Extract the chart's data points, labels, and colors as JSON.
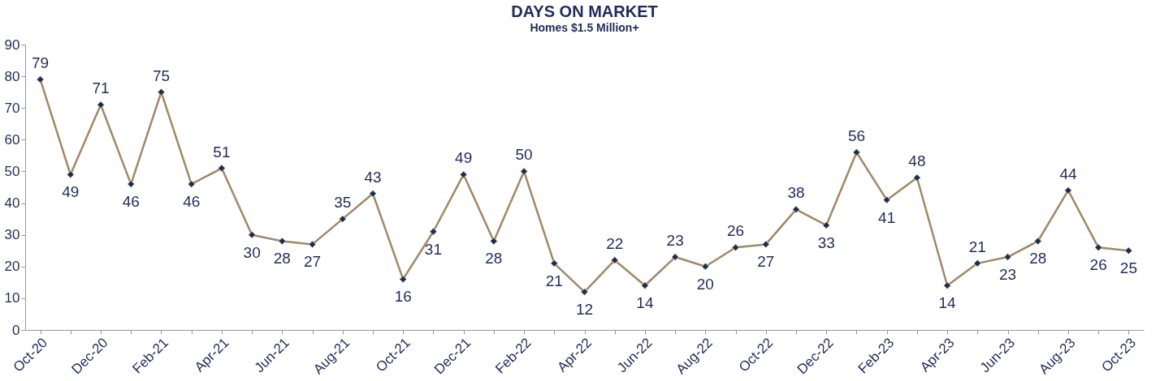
{
  "chart_data": {
    "type": "line",
    "title": "DAYS ON MARKET",
    "subtitle": "Homes $1.5 Million+",
    "categories": [
      "Oct-20",
      null,
      "Dec-20",
      null,
      "Feb-21",
      null,
      "Apr-21",
      null,
      "Jun-21",
      null,
      "Aug-21",
      null,
      "Oct-21",
      null,
      "Dec-21",
      null,
      "Feb-22",
      null,
      "Apr-22",
      null,
      "Jun-22",
      null,
      "Aug-22",
      null,
      "Oct-22",
      null,
      "Dec-22",
      null,
      "Feb-23",
      null,
      "Apr-23",
      null,
      "Jun-23",
      null,
      "Aug-23",
      null,
      "Oct-23"
    ],
    "series": [
      {
        "color": "#a08866",
        "values": [
          79,
          49,
          71,
          46,
          75,
          46,
          51,
          30,
          28,
          27,
          35,
          43,
          16,
          31,
          49,
          28,
          50,
          21,
          12,
          22,
          14,
          23,
          20,
          26,
          27,
          38,
          33,
          56,
          41,
          48,
          14,
          21,
          23,
          28,
          44,
          26,
          25
        ]
      }
    ],
    "ylim": [
      0,
      90
    ],
    "yticks": [
      0,
      10,
      20,
      30,
      40,
      50,
      60,
      70,
      80,
      90
    ],
    "grid": false,
    "marker": "diamond",
    "line_style": "solid",
    "data_labels": true
  }
}
